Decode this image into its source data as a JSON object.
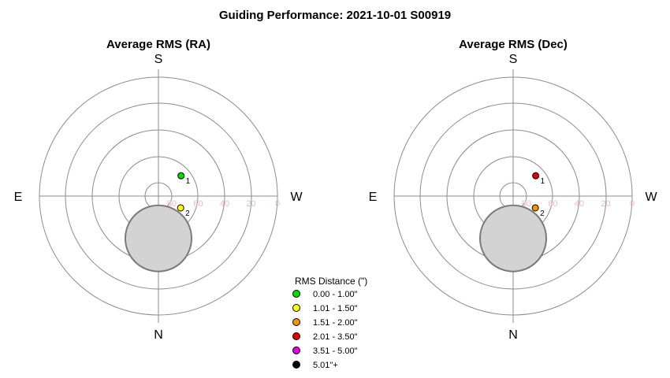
{
  "title": "Guiding Performance: 2021-10-01 S00919",
  "chart_data": [
    {
      "type": "scatter",
      "projection": "polar-altaz",
      "title": "Average RMS (RA)",
      "directions": {
        "top": "S",
        "bottom": "N",
        "left": "E",
        "right": "W"
      },
      "altitude_ticks": [
        "80",
        "60",
        "40",
        "20",
        "0"
      ],
      "altitude_tick_values": [
        80,
        60,
        40,
        20,
        0
      ],
      "points": [
        {
          "label": "1",
          "alt": 67,
          "dir": "south-west",
          "class": "0.00 - 1.00\""
        },
        {
          "label": "2",
          "alt": 71,
          "dir": "north-west",
          "class": "1.01 - 1.50\""
        }
      ],
      "moon": {
        "alt": 58,
        "dir": "north"
      }
    },
    {
      "type": "scatter",
      "projection": "polar-altaz",
      "title": "Average RMS (Dec)",
      "directions": {
        "top": "S",
        "bottom": "N",
        "left": "E",
        "right": "W"
      },
      "altitude_ticks": [
        "80",
        "60",
        "40",
        "20",
        "0"
      ],
      "altitude_tick_values": [
        80,
        60,
        40,
        20,
        0
      ],
      "points": [
        {
          "label": "1",
          "alt": 67,
          "dir": "south-west",
          "class": "2.01 - 3.50\""
        },
        {
          "label": "2",
          "alt": 71,
          "dir": "north-west",
          "class": "1.51 - 2.00\""
        }
      ],
      "moon": {
        "alt": 58,
        "dir": "north"
      }
    }
  ],
  "legend": {
    "title": "RMS Distance (\")",
    "items": [
      {
        "label": "0.00 - 1.00\"",
        "color": "#00e000"
      },
      {
        "label": "1.01 - 1.50\"",
        "color": "#ffff00"
      },
      {
        "label": "1.51 - 2.00\"",
        "color": "#f59300"
      },
      {
        "label": "2.01 - 3.50\"",
        "color": "#e60000"
      },
      {
        "label": "3.51 - 5.00\"",
        "color": "#e600e6"
      },
      {
        "label": "5.01\"+",
        "color": "#000000"
      }
    ]
  }
}
